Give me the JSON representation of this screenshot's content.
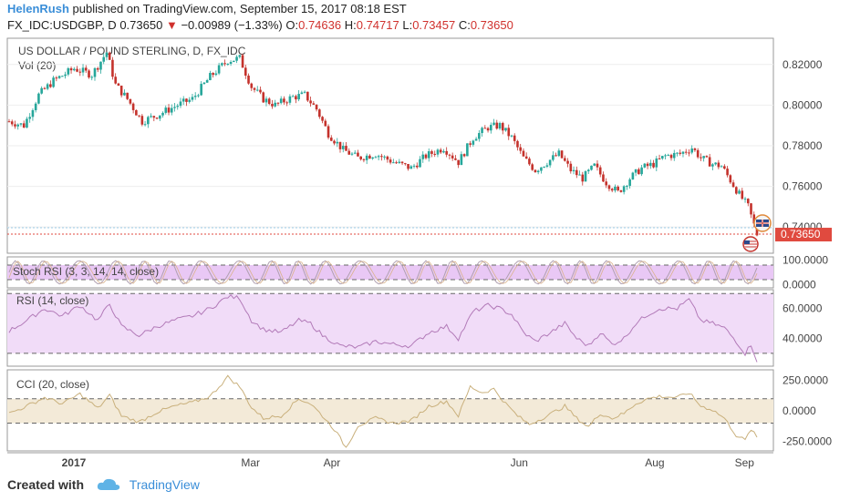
{
  "header": {
    "author": "HelenRush",
    "published_text": "published on TradingView.com, September 15, 2017 08:18 EST",
    "symbol_line": "FX_IDC:USDGBP, D",
    "last": "0.73650",
    "change": "−0.00989 (−1.33%)",
    "o_label": "O:",
    "o_value": "0.74636",
    "h_label": "H:",
    "h_value": "0.74717",
    "l_label": "L:",
    "l_value": "0.73457",
    "c_label": "C:",
    "c_value": "0.73650"
  },
  "footer": {
    "created_with": "Created with",
    "brand": "TradingView"
  },
  "colors": {
    "up": "#26a69a",
    "down": "#c4322c",
    "stoch_fill": "#e9c8f5",
    "rsi_fill": "#f1dcf8",
    "cci_fill": "#f3ead8",
    "rsi_line": "#b27ab8",
    "cci_line": "#c9b07c",
    "price_tag": "#e04a3f"
  },
  "chart_data": [
    {
      "type": "candlestick",
      "title": "US DOLLAR / POUND STERLING, D, FX_IDC",
      "volume_label": "Vol (20)",
      "ylim": [
        0.728,
        0.832
      ],
      "yticks": [
        "0.82000",
        "0.80000",
        "0.78000",
        "0.76000",
        "0.74000"
      ],
      "ytick_values": [
        0.82,
        0.8,
        0.78,
        0.76,
        0.74
      ],
      "last_price_label": "0.73650",
      "last_price": 0.7365,
      "xlabels": [
        "2017",
        "Mar",
        "Apr",
        "Jun",
        "Aug",
        "Sep"
      ],
      "anchors": [
        {
          "i": 0,
          "v": 0.792
        },
        {
          "i": 5,
          "v": 0.79
        },
        {
          "i": 10,
          "v": 0.805
        },
        {
          "i": 15,
          "v": 0.812
        },
        {
          "i": 22,
          "v": 0.818
        },
        {
          "i": 28,
          "v": 0.815
        },
        {
          "i": 33,
          "v": 0.826
        },
        {
          "i": 36,
          "v": 0.81
        },
        {
          "i": 40,
          "v": 0.803
        },
        {
          "i": 45,
          "v": 0.792
        },
        {
          "i": 50,
          "v": 0.795
        },
        {
          "i": 57,
          "v": 0.8
        },
        {
          "i": 62,
          "v": 0.803
        },
        {
          "i": 68,
          "v": 0.814
        },
        {
          "i": 74,
          "v": 0.822
        },
        {
          "i": 78,
          "v": 0.823
        },
        {
          "i": 82,
          "v": 0.809
        },
        {
          "i": 86,
          "v": 0.803
        },
        {
          "i": 90,
          "v": 0.8
        },
        {
          "i": 96,
          "v": 0.804
        },
        {
          "i": 100,
          "v": 0.805
        },
        {
          "i": 104,
          "v": 0.798
        },
        {
          "i": 108,
          "v": 0.786
        },
        {
          "i": 113,
          "v": 0.778
        },
        {
          "i": 118,
          "v": 0.774
        },
        {
          "i": 124,
          "v": 0.776
        },
        {
          "i": 130,
          "v": 0.772
        },
        {
          "i": 136,
          "v": 0.769
        },
        {
          "i": 141,
          "v": 0.775
        },
        {
          "i": 147,
          "v": 0.779
        },
        {
          "i": 152,
          "v": 0.772
        },
        {
          "i": 157,
          "v": 0.784
        },
        {
          "i": 162,
          "v": 0.789
        },
        {
          "i": 166,
          "v": 0.79
        },
        {
          "i": 170,
          "v": 0.784
        },
        {
          "i": 174,
          "v": 0.774
        },
        {
          "i": 178,
          "v": 0.768
        },
        {
          "i": 182,
          "v": 0.772
        },
        {
          "i": 186,
          "v": 0.776
        },
        {
          "i": 190,
          "v": 0.768
        },
        {
          "i": 194,
          "v": 0.764
        },
        {
          "i": 198,
          "v": 0.77
        },
        {
          "i": 202,
          "v": 0.762
        },
        {
          "i": 206,
          "v": 0.757
        },
        {
          "i": 210,
          "v": 0.764
        },
        {
          "i": 214,
          "v": 0.769
        },
        {
          "i": 218,
          "v": 0.771
        },
        {
          "i": 222,
          "v": 0.775
        },
        {
          "i": 227,
          "v": 0.776
        },
        {
          "i": 231,
          "v": 0.779
        },
        {
          "i": 234,
          "v": 0.774
        },
        {
          "i": 238,
          "v": 0.771
        },
        {
          "i": 241,
          "v": 0.77
        },
        {
          "i": 244,
          "v": 0.763
        },
        {
          "i": 247,
          "v": 0.756
        },
        {
          "i": 250,
          "v": 0.75
        },
        {
          "i": 253,
          "v": 0.7365
        }
      ],
      "n_bars": 254
    },
    {
      "type": "line",
      "title": "Stoch RSI (3, 3, 14, 14, close)",
      "ylim": [
        -10,
        110
      ],
      "yticks": [
        "100.0000",
        "0.0000"
      ],
      "ytick_values": [
        100,
        0
      ],
      "band": [
        20,
        80
      ],
      "oscillation_cycles": 24
    },
    {
      "type": "line",
      "title": "RSI (14, close)",
      "ylim": [
        22,
        72
      ],
      "yticks": [
        "60.0000",
        "40.0000"
      ],
      "ytick_values": [
        60,
        40
      ],
      "band": [
        30,
        70
      ],
      "anchors": [
        {
          "i": 0,
          "v": 45
        },
        {
          "i": 6,
          "v": 52
        },
        {
          "i": 12,
          "v": 60
        },
        {
          "i": 18,
          "v": 55
        },
        {
          "i": 24,
          "v": 62
        },
        {
          "i": 30,
          "v": 52
        },
        {
          "i": 34,
          "v": 63
        },
        {
          "i": 38,
          "v": 48
        },
        {
          "i": 44,
          "v": 42
        },
        {
          "i": 50,
          "v": 48
        },
        {
          "i": 56,
          "v": 52
        },
        {
          "i": 62,
          "v": 55
        },
        {
          "i": 68,
          "v": 60
        },
        {
          "i": 74,
          "v": 68
        },
        {
          "i": 78,
          "v": 67
        },
        {
          "i": 82,
          "v": 52
        },
        {
          "i": 86,
          "v": 46
        },
        {
          "i": 92,
          "v": 44
        },
        {
          "i": 98,
          "v": 52
        },
        {
          "i": 102,
          "v": 50
        },
        {
          "i": 106,
          "v": 42
        },
        {
          "i": 112,
          "v": 35
        },
        {
          "i": 118,
          "v": 34
        },
        {
          "i": 124,
          "v": 38
        },
        {
          "i": 130,
          "v": 36
        },
        {
          "i": 136,
          "v": 35
        },
        {
          "i": 142,
          "v": 44
        },
        {
          "i": 148,
          "v": 48
        },
        {
          "i": 152,
          "v": 40
        },
        {
          "i": 157,
          "v": 58
        },
        {
          "i": 162,
          "v": 62
        },
        {
          "i": 166,
          "v": 60
        },
        {
          "i": 170,
          "v": 56
        },
        {
          "i": 174,
          "v": 44
        },
        {
          "i": 178,
          "v": 38
        },
        {
          "i": 184,
          "v": 45
        },
        {
          "i": 188,
          "v": 50
        },
        {
          "i": 192,
          "v": 40
        },
        {
          "i": 196,
          "v": 35
        },
        {
          "i": 200,
          "v": 44
        },
        {
          "i": 204,
          "v": 36
        },
        {
          "i": 208,
          "v": 40
        },
        {
          "i": 212,
          "v": 50
        },
        {
          "i": 216,
          "v": 56
        },
        {
          "i": 220,
          "v": 60
        },
        {
          "i": 226,
          "v": 60
        },
        {
          "i": 230,
          "v": 66
        },
        {
          "i": 234,
          "v": 52
        },
        {
          "i": 238,
          "v": 50
        },
        {
          "i": 242,
          "v": 47
        },
        {
          "i": 246,
          "v": 38
        },
        {
          "i": 249,
          "v": 30
        },
        {
          "i": 251,
          "v": 36
        },
        {
          "i": 253,
          "v": 25
        }
      ]
    },
    {
      "type": "line",
      "title": "CCI (20, close)",
      "ylim": [
        -320,
        330
      ],
      "yticks": [
        "250.0000",
        "0.0000",
        "-250.0000"
      ],
      "ytick_values": [
        250,
        0,
        -250
      ],
      "band": [
        -100,
        100
      ],
      "anchors": [
        {
          "i": 0,
          "v": -20
        },
        {
          "i": 6,
          "v": 40
        },
        {
          "i": 12,
          "v": 110
        },
        {
          "i": 18,
          "v": 60
        },
        {
          "i": 24,
          "v": 140
        },
        {
          "i": 30,
          "v": 20
        },
        {
          "i": 34,
          "v": 130
        },
        {
          "i": 38,
          "v": -40
        },
        {
          "i": 44,
          "v": -90
        },
        {
          "i": 50,
          "v": -10
        },
        {
          "i": 56,
          "v": 40
        },
        {
          "i": 62,
          "v": 70
        },
        {
          "i": 68,
          "v": 120
        },
        {
          "i": 74,
          "v": 280
        },
        {
          "i": 78,
          "v": 200
        },
        {
          "i": 82,
          "v": 30
        },
        {
          "i": 86,
          "v": -60
        },
        {
          "i": 92,
          "v": -40
        },
        {
          "i": 98,
          "v": 100
        },
        {
          "i": 102,
          "v": 60
        },
        {
          "i": 106,
          "v": -40
        },
        {
          "i": 110,
          "v": -150
        },
        {
          "i": 114,
          "v": -300
        },
        {
          "i": 118,
          "v": -120
        },
        {
          "i": 124,
          "v": -60
        },
        {
          "i": 130,
          "v": -100
        },
        {
          "i": 136,
          "v": -80
        },
        {
          "i": 142,
          "v": 40
        },
        {
          "i": 148,
          "v": 80
        },
        {
          "i": 152,
          "v": -40
        },
        {
          "i": 156,
          "v": 200
        },
        {
          "i": 160,
          "v": 150
        },
        {
          "i": 164,
          "v": 180
        },
        {
          "i": 168,
          "v": 60
        },
        {
          "i": 172,
          "v": -40
        },
        {
          "i": 176,
          "v": -110
        },
        {
          "i": 182,
          "v": -40
        },
        {
          "i": 188,
          "v": 40
        },
        {
          "i": 192,
          "v": -60
        },
        {
          "i": 196,
          "v": -130
        },
        {
          "i": 200,
          "v": -20
        },
        {
          "i": 204,
          "v": -60
        },
        {
          "i": 208,
          "v": -20
        },
        {
          "i": 212,
          "v": 60
        },
        {
          "i": 216,
          "v": 100
        },
        {
          "i": 220,
          "v": 120
        },
        {
          "i": 226,
          "v": 110
        },
        {
          "i": 230,
          "v": 150
        },
        {
          "i": 234,
          "v": 40
        },
        {
          "i": 238,
          "v": 10
        },
        {
          "i": 242,
          "v": -60
        },
        {
          "i": 246,
          "v": -200
        },
        {
          "i": 249,
          "v": -240
        },
        {
          "i": 251,
          "v": -150
        },
        {
          "i": 253,
          "v": -220
        }
      ]
    }
  ]
}
